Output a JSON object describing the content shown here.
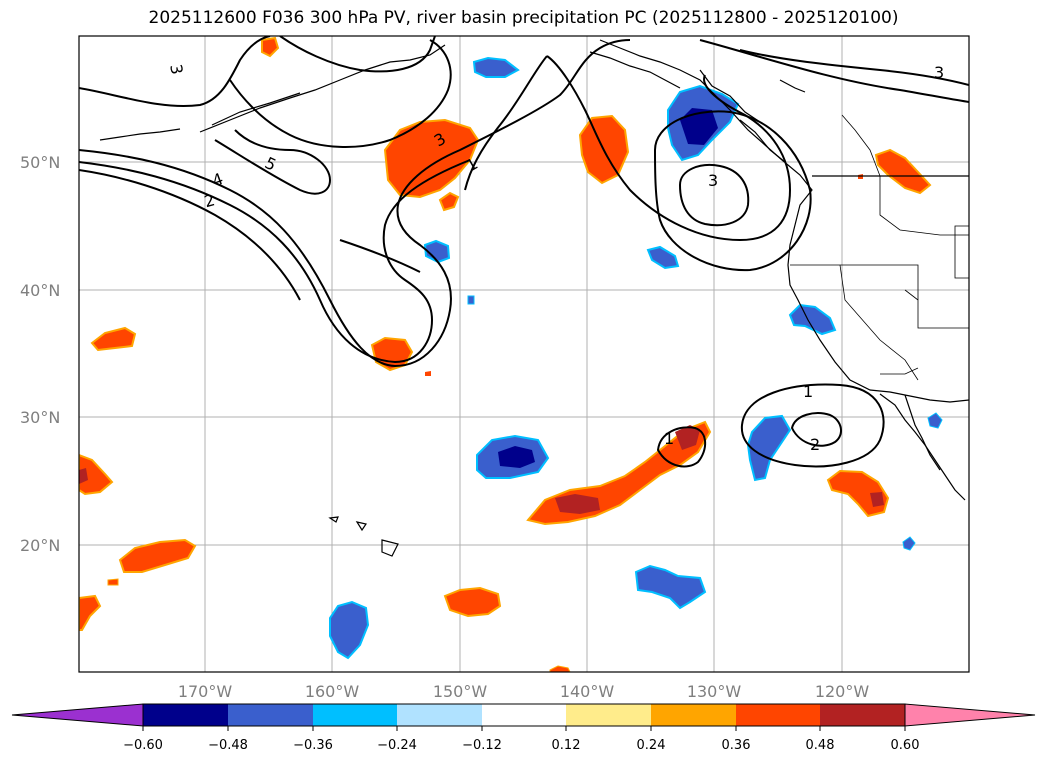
{
  "title": "2025112600 F036 300 hPa PV, river basin precipitation PC (2025112800 - 2025120100)",
  "lat_labels": [
    "50°N",
    "40°N",
    "30°N",
    "20°N"
  ],
  "lon_labels": [
    "170°W",
    "160°W",
    "150°W",
    "140°W",
    "130°W",
    "120°W"
  ],
  "colorbar": {
    "ticks": [
      "−0.60",
      "−0.48",
      "−0.36",
      "−0.24",
      "−0.12",
      "0.12",
      "0.24",
      "0.36",
      "0.48",
      "0.60"
    ],
    "colors": [
      "#9b30d0",
      "#00008b",
      "#3a5fcd",
      "#00bfff",
      "#b0e2ff",
      "#ffffff",
      "#ffec8b",
      "#ffa500",
      "#ff4500",
      "#b22222",
      "#ff82ab"
    ]
  },
  "contour_labels": [
    "3",
    "5",
    "4",
    "2",
    "3",
    "1",
    "3",
    "3",
    "1",
    "2",
    "1"
  ],
  "colors": {
    "contour": "#000000",
    "grid": "#b0b0b0",
    "coast": "#000000"
  }
}
